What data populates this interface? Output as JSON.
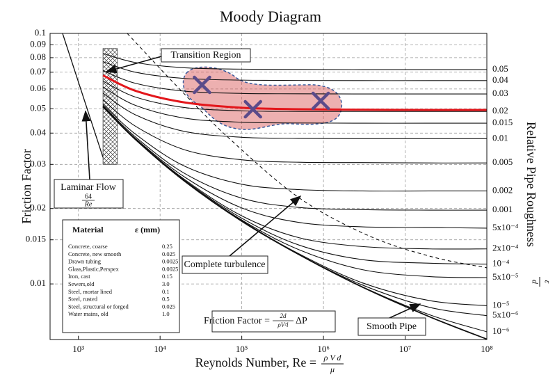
{
  "chart_data": {
    "type": "line",
    "title": "Moody Diagram",
    "y_label": "Friction Factor",
    "x_label": {
      "text": "Reynolds Number, Re =",
      "numerator": "ρ V d",
      "denominator": "μ"
    },
    "y2_label": {
      "text": "Relative Pipe Roughness",
      "numerator": "ε",
      "denominator": "d"
    },
    "xscale": "log",
    "yscale": "log",
    "xlim": [
      450,
      100000000
    ],
    "ylim": [
      0.006,
      0.1
    ],
    "xticks": [
      {
        "value": 1000,
        "label": "10³"
      },
      {
        "value": 10000,
        "label": "10⁴"
      },
      {
        "value": 100000,
        "label": "10⁵"
      },
      {
        "value": 1000000,
        "label": "10⁶"
      },
      {
        "value": 10000000,
        "label": "10⁷"
      },
      {
        "value": 100000000,
        "label": "10⁸"
      }
    ],
    "yticks": [
      0.1,
      0.09,
      0.08,
      0.07,
      0.06,
      0.05,
      0.04,
      0.03,
      0.02,
      0.015,
      0.01
    ],
    "grid": true,
    "line_color": "#111111",
    "x": [
      2000,
      5000,
      20000,
      100000,
      500000,
      3000000,
      20000000,
      100000000
    ],
    "series": [
      {
        "name": "0.05",
        "values": [
          0.0832,
          0.0765,
          0.0729,
          0.072,
          0.0718,
          0.0717,
          0.0717,
          0.0717
        ]
      },
      {
        "name": "0.04",
        "values": [
          0.0772,
          0.07,
          0.0661,
          0.0651,
          0.0649,
          0.0648,
          0.0648,
          0.0648
        ]
      },
      {
        "name": "0.03",
        "values": [
          0.071,
          0.0632,
          0.0588,
          0.0576,
          0.0574,
          0.0573,
          0.0573,
          0.0573
        ]
      },
      {
        "name": "0.02",
        "values": [
          0.0645,
          0.0557,
          0.0506,
          0.0491,
          0.0488,
          0.0488,
          0.0488,
          0.0488
        ]
      },
      {
        "name": "0.015",
        "values": [
          0.0611,
          0.0516,
          0.0459,
          0.0442,
          0.0439,
          0.0438,
          0.0438,
          0.0438
        ]
      },
      {
        "name": "0.01",
        "values": [
          0.0577,
          0.0473,
          0.0406,
          0.0385,
          0.0381,
          0.038,
          0.038,
          0.038
        ]
      },
      {
        "name": "0.005",
        "values": [
          0.0542,
          0.0426,
          0.0343,
          0.0313,
          0.0306,
          0.0305,
          0.0304,
          0.0304
        ]
      },
      {
        "name": "0.002",
        "values": [
          0.0521,
          0.0396,
          0.0295,
          0.025,
          0.0238,
          0.0235,
          0.0235,
          0.0235
        ]
      },
      {
        "name": "0.001",
        "values": [
          0.0515,
          0.0386,
          0.0276,
          0.022,
          0.0202,
          0.0198,
          0.0197,
          0.0197
        ]
      },
      {
        "name": "5x10⁻⁴",
        "values": [
          0.0512,
          0.0381,
          0.0267,
          0.0201,
          0.0176,
          0.0169,
          0.0168,
          0.0167
        ]
      },
      {
        "name": "2x10⁻⁴",
        "values": [
          0.051,
          0.0379,
          0.0261,
          0.0187,
          0.0153,
          0.0141,
          0.0138,
          0.0138
        ]
      },
      {
        "name": "10⁻⁴",
        "values": [
          0.051,
          0.0378,
          0.0259,
          0.0183,
          0.0143,
          0.0125,
          0.0121,
          0.012
        ]
      },
      {
        "name": "5x10⁻⁵",
        "values": [
          0.051,
          0.0378,
          0.0258,
          0.018,
          0.0137,
          0.0114,
          0.0107,
          0.0106
        ]
      },
      {
        "name": "10⁻⁵",
        "values": [
          0.0509,
          0.0377,
          0.0258,
          0.0179,
          0.0132,
          0.0101,
          0.00858,
          0.00819
        ]
      },
      {
        "name": "5x10⁻⁶",
        "values": [
          0.0509,
          0.0377,
          0.0257,
          0.0179,
          0.0131,
          0.0099,
          0.00806,
          0.00747
        ]
      },
      {
        "name": "10⁻⁶",
        "values": [
          0.0509,
          0.0377,
          0.0257,
          0.0178,
          0.0131,
          0.00974,
          0.00753,
          0.00644
        ]
      }
    ],
    "smooth_pipe": {
      "name": "Smooth Pipe",
      "values": [
        0.0509,
        0.0377,
        0.0257,
        0.0178,
        0.0131,
        0.00971,
        0.00739,
        0.00602
      ]
    },
    "highlight_curve": {
      "color": "#e3161b",
      "values": [
        0.068,
        0.059,
        0.053,
        0.0505,
        0.0498,
        0.0496,
        0.0495,
        0.0495
      ]
    },
    "laminar": {
      "name": "Laminar Flow",
      "formula_numerator": "64",
      "formula_denominator": "Re",
      "x": [
        640,
        2000
      ],
      "values": [
        0.1,
        0.032
      ]
    },
    "complete_turbulence": {
      "name": "Complete turbulence",
      "x": [
        3960,
        18000,
        72000,
        510000,
        3700000,
        22000000,
        100000000
      ],
      "values": [
        0.1,
        0.0592,
        0.0378,
        0.022,
        0.0155,
        0.0128,
        0.0116
      ]
    },
    "transition_region": {
      "name": "Transition Region",
      "x": [
        2000,
        3000
      ],
      "y": [
        0.03,
        0.087
      ]
    },
    "markers": {
      "color": "#5b4b8a",
      "x": [
        32600,
        137000,
        925000
      ],
      "y": [
        0.0623,
        0.0498,
        0.0538
      ]
    },
    "friction_formula": {
      "label": "Friction Factor =",
      "numerator": "2d",
      "denominator": "ρV²l",
      "suffix": "ΔP"
    },
    "material_table": {
      "headers": [
        "Material",
        "ε (mm)"
      ],
      "rows": [
        [
          "Concrete, coarse",
          "0.25"
        ],
        [
          "Concrete, new smooth",
          "0.025"
        ],
        [
          "Drawn tubing",
          "0.0025"
        ],
        [
          "Glass,Plastic,Perspex",
          "0.0025"
        ],
        [
          "Iron, cast",
          "0.15"
        ],
        [
          "Sewers,old",
          "3.0"
        ],
        [
          "Steel, mortar lined",
          "0.1"
        ],
        [
          "Steel, rusted",
          "0.5"
        ],
        [
          "Steel, structural or forged",
          "0.025"
        ],
        [
          "Water mains, old",
          "1.0"
        ]
      ]
    }
  }
}
